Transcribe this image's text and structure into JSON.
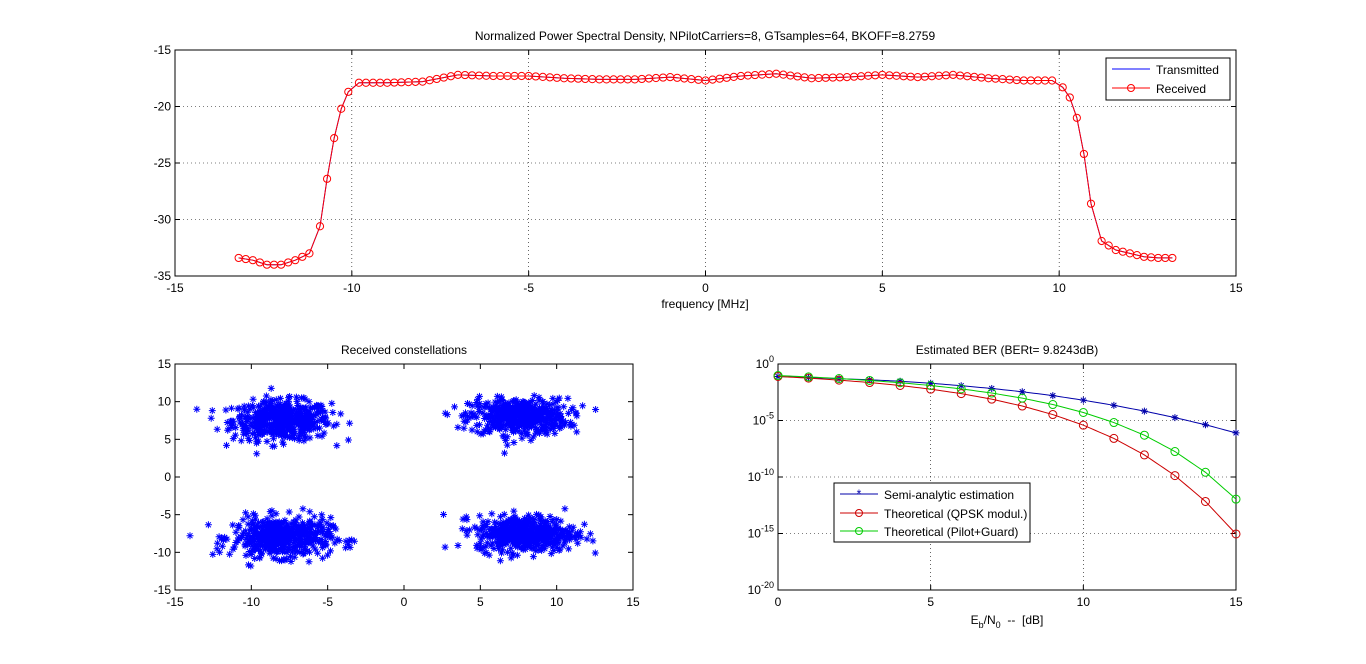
{
  "chart_data": [
    {
      "type": "line",
      "title": "Normalized Power Spectral Density, NPilotCarriers=8, GTsamples=64, BKOFF=8.2759",
      "xlabel": "frequency [MHz]",
      "ylabel": "",
      "xlim": [
        -15,
        15
      ],
      "ylim": [
        -35,
        -15
      ],
      "xticks": [
        -15,
        -10,
        -5,
        0,
        5,
        10,
        15
      ],
      "yticks": [
        -35,
        -30,
        -25,
        -20,
        -15
      ],
      "grid": true,
      "legend_position": "top-right",
      "colors": {
        "Transmitted": "#0000ff",
        "Received": "#ff0000"
      },
      "series": [
        {
          "name": "Transmitted",
          "line": "solid",
          "marker": "none",
          "x": [
            -13.2,
            -12.8,
            -12.4,
            -12.0,
            -11.6,
            -11.2,
            -10.9,
            -10.7,
            -10.5,
            -10.3,
            -10.1,
            -9.8,
            -9.0,
            -8.0,
            -7.0,
            -6.0,
            -5.0,
            -4.0,
            -3.0,
            -2.0,
            -1.0,
            0.0,
            1.0,
            2.0,
            3.0,
            4.0,
            5.0,
            6.0,
            7.0,
            8.0,
            9.0,
            9.8,
            10.1,
            10.3,
            10.5,
            10.7,
            10.9,
            11.2,
            11.6,
            12.0,
            12.4,
            12.8,
            13.2
          ],
          "y": [
            -33.4,
            -33.6,
            -34.0,
            -34.0,
            -33.6,
            -33.0,
            -30.6,
            -26.4,
            -22.8,
            -20.2,
            -18.7,
            -17.9,
            -17.9,
            -17.8,
            -17.2,
            -17.3,
            -17.3,
            -17.5,
            -17.6,
            -17.6,
            -17.4,
            -17.7,
            -17.3,
            -17.1,
            -17.5,
            -17.4,
            -17.2,
            -17.4,
            -17.2,
            -17.5,
            -17.7,
            -17.7,
            -18.3,
            -19.2,
            -21.0,
            -24.2,
            -28.6,
            -31.9,
            -32.7,
            -33.0,
            -33.3,
            -33.4,
            -33.4
          ]
        },
        {
          "name": "Received",
          "line": "solid",
          "marker": "circle",
          "x": [
            -13.2,
            -12.8,
            -12.4,
            -12.0,
            -11.6,
            -11.2,
            -10.9,
            -10.7,
            -10.5,
            -10.3,
            -10.1,
            -9.8,
            -9.0,
            -8.0,
            -7.0,
            -6.0,
            -5.0,
            -4.0,
            -3.0,
            -2.0,
            -1.0,
            0.0,
            1.0,
            2.0,
            3.0,
            4.0,
            5.0,
            6.0,
            7.0,
            8.0,
            9.0,
            9.8,
            10.1,
            10.3,
            10.5,
            10.7,
            10.9,
            11.2,
            11.6,
            12.0,
            12.4,
            12.8,
            13.2
          ],
          "y": [
            -33.4,
            -33.6,
            -34.0,
            -34.0,
            -33.6,
            -33.0,
            -30.6,
            -26.4,
            -22.8,
            -20.2,
            -18.7,
            -17.9,
            -17.9,
            -17.8,
            -17.2,
            -17.3,
            -17.3,
            -17.5,
            -17.6,
            -17.6,
            -17.4,
            -17.7,
            -17.3,
            -17.1,
            -17.5,
            -17.4,
            -17.2,
            -17.4,
            -17.2,
            -17.5,
            -17.7,
            -17.7,
            -18.3,
            -19.2,
            -21.0,
            -24.2,
            -28.6,
            -31.9,
            -32.7,
            -33.0,
            -33.3,
            -33.4,
            -33.4
          ]
        }
      ]
    },
    {
      "type": "scatter",
      "title": "Received constellations",
      "xlabel": "",
      "ylabel": "",
      "xlim": [
        -15,
        15
      ],
      "ylim": [
        -15,
        15
      ],
      "xticks": [
        -15,
        -10,
        -5,
        0,
        5,
        10,
        15
      ],
      "yticks": [
        -15,
        -10,
        -5,
        0,
        5,
        10,
        15
      ],
      "grid": false,
      "marker": "*",
      "color": "#0000ff",
      "clusters": [
        {
          "center_x": -8.0,
          "center_y": 7.5,
          "spread_x": 1.6,
          "spread_y": 1.3,
          "points": 520
        },
        {
          "center_x": 7.5,
          "center_y": 8.0,
          "spread_x": 1.6,
          "spread_y": 1.2,
          "points": 520
        },
        {
          "center_x": -8.0,
          "center_y": -8.0,
          "spread_x": 1.6,
          "spread_y": 1.3,
          "points": 520
        },
        {
          "center_x": 8.0,
          "center_y": -7.5,
          "spread_x": 1.6,
          "spread_y": 1.2,
          "points": 520
        }
      ]
    },
    {
      "type": "line",
      "title": "Estimated BER (BERt= 9.8243dB)",
      "xlabel_main": "E",
      "xlabel_sub1": "b",
      "xlabel_mid": "/N",
      "xlabel_sub2": "0",
      "xlabel_tail": "  --  [dB]",
      "ylabel": "",
      "xlim": [
        0,
        15
      ],
      "ylim_log10": [
        -20,
        0
      ],
      "yscale": "log",
      "xticks": [
        0,
        5,
        10,
        15
      ],
      "ytick_base": "10",
      "ytick_exponents": [
        "0",
        "-5",
        "-10",
        "-15",
        "-20"
      ],
      "grid": true,
      "legend_position": "bottom-center",
      "series": [
        {
          "name": "Semi-analytic estimation",
          "color": "#0000aa",
          "marker": "star",
          "x": [
            0,
            1,
            2,
            3,
            4,
            5,
            6,
            7,
            8,
            9,
            10,
            11,
            12,
            13,
            14,
            15
          ],
          "y": [
            0.079,
            0.063,
            0.05,
            0.04,
            0.03,
            0.02,
            0.012,
            0.0068,
            0.0035,
            0.0016,
            0.00063,
            0.00022,
            6.8e-05,
            1.8e-05,
            4.2e-06,
            8e-07
          ]
        },
        {
          "name": "Theoretical (QPSK modul.)",
          "color": "#cc0000",
          "marker": "circle",
          "x": [
            0,
            1,
            2,
            3,
            4,
            5,
            6,
            7,
            8,
            9,
            10,
            11,
            12,
            13,
            14,
            15
          ],
          "y": [
            0.0786,
            0.0563,
            0.0375,
            0.0229,
            0.0125,
            0.00595,
            0.00239,
            0.000773,
            0.000191,
            3.36e-05,
            3.87e-06,
            2.61e-07,
            9e-09,
            1.33e-10,
            6.8e-13,
            9.1e-16
          ]
        },
        {
          "name": "Theoretical (Pilot+Guard)",
          "color": "#00cc00",
          "marker": "circle",
          "x": [
            0,
            1,
            2,
            3,
            4,
            5,
            6,
            7,
            8,
            9,
            10,
            11,
            12,
            13,
            14,
            15
          ],
          "y": [
            0.095,
            0.072,
            0.052,
            0.035,
            0.022,
            0.0125,
            0.0063,
            0.0027,
            0.00095,
            0.00026,
            5.1e-05,
            6.6e-06,
            5e-07,
            1.8e-08,
            2.6e-10,
            1.1e-12
          ]
        }
      ]
    }
  ]
}
